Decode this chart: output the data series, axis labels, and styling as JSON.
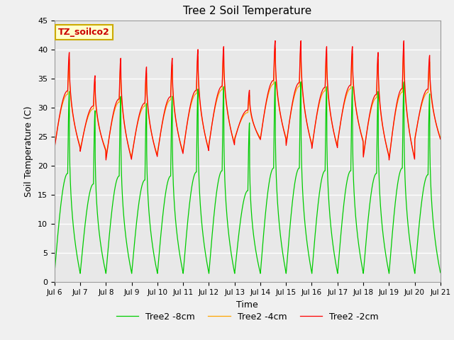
{
  "title": "Tree 2 Soil Temperature",
  "xlabel": "Time",
  "ylabel": "Soil Temperature (C)",
  "legend_label": "TZ_soilco2",
  "series_labels": [
    "Tree2 -2cm",
    "Tree2 -4cm",
    "Tree2 -8cm"
  ],
  "series_colors": [
    "#ff0000",
    "#ffa500",
    "#00cc00"
  ],
  "ylim": [
    0,
    45
  ],
  "xtick_labels": [
    "Jul 6",
    "Jul 7",
    "Jul 8",
    "Jul 9",
    "Jul 10",
    "Jul 11",
    "Jul 12",
    "Jul 13",
    "Jul 14",
    "Jul 15",
    "Jul 16",
    "Jul 17",
    "Jul 18",
    "Jul 19",
    "Jul 20",
    "Jul 21"
  ],
  "fig_bg_color": "#f0f0f0",
  "plot_bg_color": "#e8e8e8",
  "annotation_bg": "#ffffcc",
  "annotation_border": "#ccaa00",
  "peaks_2cm": [
    39.5,
    35.5,
    38.5,
    37.0,
    38.5,
    40.0,
    40.5,
    33.0,
    41.5,
    41.5,
    40.5,
    40.5,
    39.5,
    41.5,
    39.0
  ],
  "night_min_2cm": [
    23.0,
    22.5,
    21.0,
    21.5,
    22.0,
    22.5,
    23.5,
    24.5,
    24.5,
    23.5,
    23.0,
    24.0,
    21.5,
    21.0,
    24.5
  ],
  "night_min_8cm": [
    1.5,
    1.5,
    1.5,
    1.5,
    1.5,
    1.5,
    1.5,
    1.5,
    1.5,
    1.5,
    1.5,
    1.5,
    1.5,
    1.5,
    1.5
  ]
}
